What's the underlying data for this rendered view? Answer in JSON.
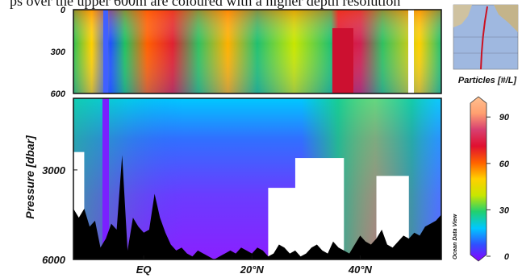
{
  "header": {
    "text": "ps over the upper 600m are coloured with a higher depth resolution"
  },
  "chart_data": {
    "type": "heatmap",
    "title": "",
    "xlabel": "",
    "ylabel": "Pressure [dbar]",
    "x_ticks": [
      {
        "label": "EQ",
        "lat": 0
      },
      {
        "label": "20°N",
        "lat": 20
      },
      {
        "label": "40°N",
        "lat": 40
      }
    ],
    "x_range_lat": [
      -13,
      55
    ],
    "upper_panel": {
      "ylim": [
        600,
        0
      ],
      "y_ticks": [
        {
          "label": "0",
          "value": 0
        },
        {
          "label": "300",
          "value": 300
        },
        {
          "label": "600",
          "value": 600
        }
      ]
    },
    "lower_panel": {
      "ylim": [
        6000,
        600
      ],
      "y_ticks": [
        {
          "label": "3000",
          "value": 3000
        },
        {
          "label": "6000",
          "value": 6000
        }
      ]
    },
    "colorbar": {
      "title": "Particles [#/L]",
      "min": 0,
      "max": 100,
      "ticks": [
        {
          "label": "90",
          "value": 90
        },
        {
          "label": "60",
          "value": 60
        },
        {
          "label": "30",
          "value": 30
        },
        {
          "label": "0",
          "value": 0
        }
      ],
      "colors": [
        "#8800ff",
        "#3050ff",
        "#00c8ff",
        "#20d070",
        "#c8e600",
        "#ffd000",
        "#ff6000",
        "#e01030",
        "#d84070",
        "#ffa070",
        "#ffc090"
      ]
    },
    "watermark": "Ocean Data View",
    "bathymetry_depth_dbar": [
      [
        -13,
        4300
      ],
      [
        -12,
        4600
      ],
      [
        -11,
        4300
      ],
      [
        -10,
        4900
      ],
      [
        -9,
        4700
      ],
      [
        -8,
        5600
      ],
      [
        -7,
        5300
      ],
      [
        -6,
        4800
      ],
      [
        -5,
        5000
      ],
      [
        -4,
        2500
      ],
      [
        -3,
        5700
      ],
      [
        -2,
        4600
      ],
      [
        -1,
        4900
      ],
      [
        0,
        5100
      ],
      [
        1,
        5000
      ],
      [
        2,
        3800
      ],
      [
        3,
        4600
      ],
      [
        4,
        5100
      ],
      [
        5,
        5500
      ],
      [
        6,
        5700
      ],
      [
        7,
        5600
      ],
      [
        8,
        5800
      ],
      [
        9,
        5900
      ],
      [
        10,
        5700
      ],
      [
        11,
        5800
      ],
      [
        12,
        5900
      ],
      [
        13,
        6000
      ],
      [
        14,
        5900
      ],
      [
        15,
        5800
      ],
      [
        16,
        5700
      ],
      [
        17,
        5800
      ],
      [
        18,
        5600
      ],
      [
        19,
        5700
      ],
      [
        20,
        5800
      ],
      [
        21,
        5600
      ],
      [
        22,
        5700
      ],
      [
        23,
        5900
      ],
      [
        24,
        5800
      ],
      [
        25,
        5500
      ],
      [
        26,
        5600
      ],
      [
        27,
        5800
      ],
      [
        28,
        5700
      ],
      [
        29,
        5900
      ],
      [
        30,
        5800
      ],
      [
        31,
        5600
      ],
      [
        32,
        5500
      ],
      [
        33,
        5700
      ],
      [
        34,
        5800
      ],
      [
        35,
        5400
      ],
      [
        36,
        5600
      ],
      [
        37,
        5700
      ],
      [
        38,
        5800
      ],
      [
        39,
        5500
      ],
      [
        40,
        5200
      ],
      [
        41,
        5400
      ],
      [
        42,
        5500
      ],
      [
        43,
        5300
      ],
      [
        44,
        5000
      ],
      [
        45,
        5500
      ],
      [
        46,
        5600
      ],
      [
        47,
        5400
      ],
      [
        48,
        5200
      ],
      [
        49,
        5300
      ],
      [
        50,
        5100
      ],
      [
        51,
        5200
      ],
      [
        52,
        4900
      ],
      [
        53,
        4800
      ],
      [
        54,
        4700
      ],
      [
        55,
        4500
      ]
    ],
    "no_data_regions": [
      {
        "lat_from": -13,
        "lat_to": -11,
        "top_dbar": 2400
      },
      {
        "lat_from": 23,
        "lat_to": 34,
        "top_dbar": 3600
      },
      {
        "lat_from": 28,
        "lat_to": 37,
        "top_dbar": 2600
      },
      {
        "lat_from": 43,
        "lat_to": 49,
        "top_dbar": 3200
      }
    ]
  },
  "inset_map": {
    "visible": true
  }
}
